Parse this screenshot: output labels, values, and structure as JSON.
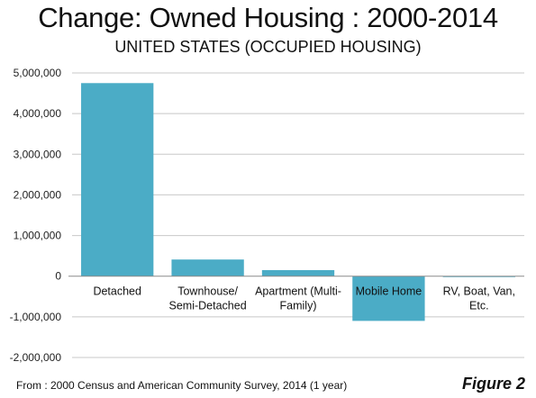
{
  "chart_data": {
    "type": "bar",
    "title": "Change: Owned Housing : 2000-2014",
    "subtitle": "UNITED STATES (OCCUPIED HOUSING)",
    "categories": [
      [
        "Detached"
      ],
      [
        "Townhouse/",
        "Semi-Detached"
      ],
      [
        "Apartment (Multi-",
        "Family)"
      ],
      [
        "Mobile Home"
      ],
      [
        "RV, Boat, Van,",
        "Etc."
      ]
    ],
    "values": [
      4750000,
      410000,
      150000,
      -1100000,
      -20000
    ],
    "ylim": [
      -2000000,
      5000000
    ],
    "y_ticks": [
      "5,000,000",
      "4,000,000",
      "3,000,000",
      "2,000,000",
      "1,000,000",
      "0",
      "-1,000,000",
      "-2,000,000"
    ],
    "bar_color": "#4bacc6",
    "grid": true,
    "xlabel": "",
    "ylabel": ""
  },
  "footer": {
    "source": "From : 2000 Census and American Community Survey, 2014 (1 year)",
    "figure_label": "Figure 2"
  }
}
